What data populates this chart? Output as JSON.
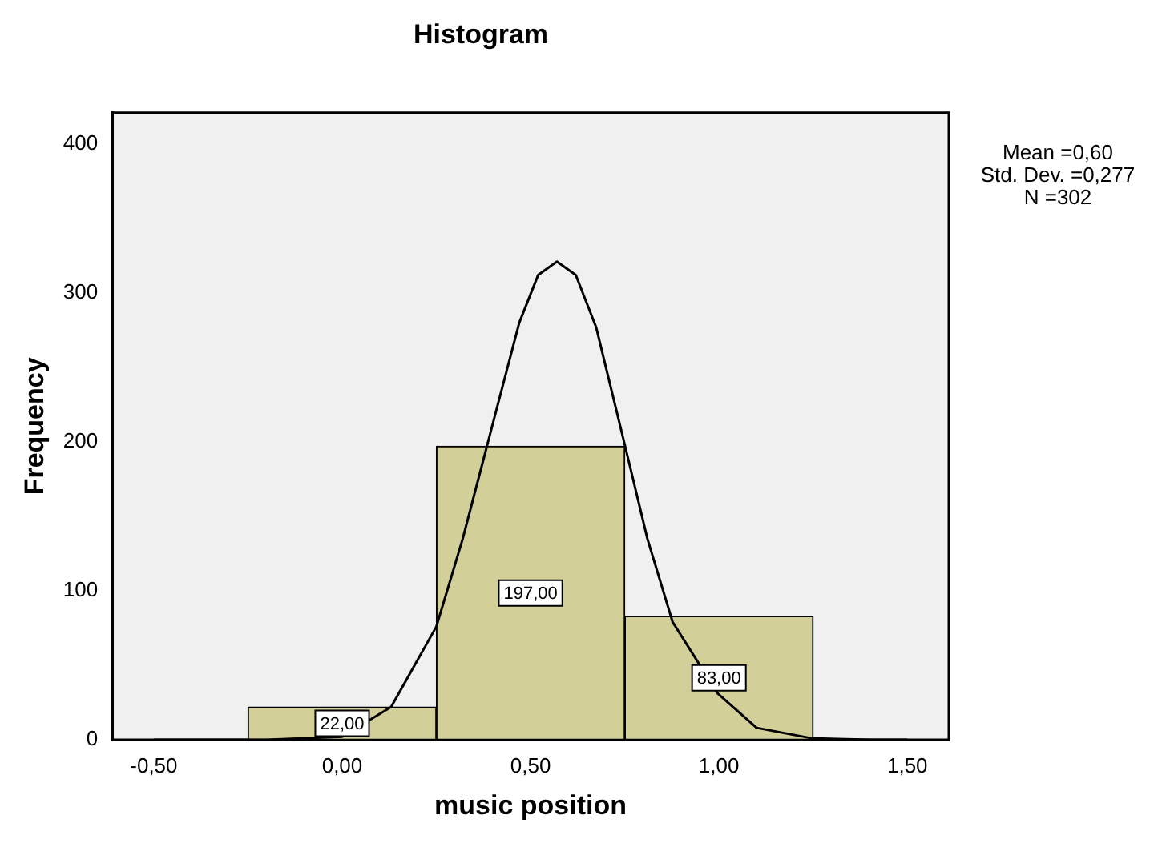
{
  "chart_data": {
    "type": "histogram",
    "title": "Histogram",
    "xlabel": "music position",
    "ylabel": "Frequency",
    "bins": [
      -0.25,
      0.25,
      0.75,
      1.25
    ],
    "values": [
      22,
      197,
      83
    ],
    "color": "#d3cf99",
    "value_labels": [
      "22,00",
      "197,00",
      "83,00"
    ],
    "series": [
      {
        "type": "line",
        "color": "#000000",
        "x": [
          -0.5,
          -0.2,
          0,
          0.13,
          0.25,
          0.32,
          0.384,
          0.47,
          0.52,
          0.57,
          0.62,
          0.674,
          0.751,
          0.81,
          0.877,
          0.997,
          1.1,
          1.246,
          1.4,
          1.5
        ],
        "values": [
          0,
          0,
          2,
          22,
          76,
          135,
          197,
          280,
          312,
          321,
          312,
          277,
          197,
          135,
          79,
          31,
          8,
          1,
          0,
          0
        ]
      }
    ],
    "xlim": [
      -0.61,
      1.61
    ],
    "xticks": [
      {
        "value": -0.5,
        "label": "-0,50"
      },
      {
        "value": 0,
        "label": "0,00"
      },
      {
        "value": 0.5,
        "label": "0,50"
      },
      {
        "value": 1,
        "label": "1,00"
      },
      {
        "value": 1.5,
        "label": "1,50"
      }
    ],
    "ylim": [
      0,
      421
    ],
    "yticks": [
      0,
      100,
      200,
      300,
      400
    ],
    "grid": false,
    "legend": false,
    "marker": "none",
    "annotations": [
      "Mean =0,60",
      "Std. Dev. =0,277",
      "N =302"
    ]
  }
}
